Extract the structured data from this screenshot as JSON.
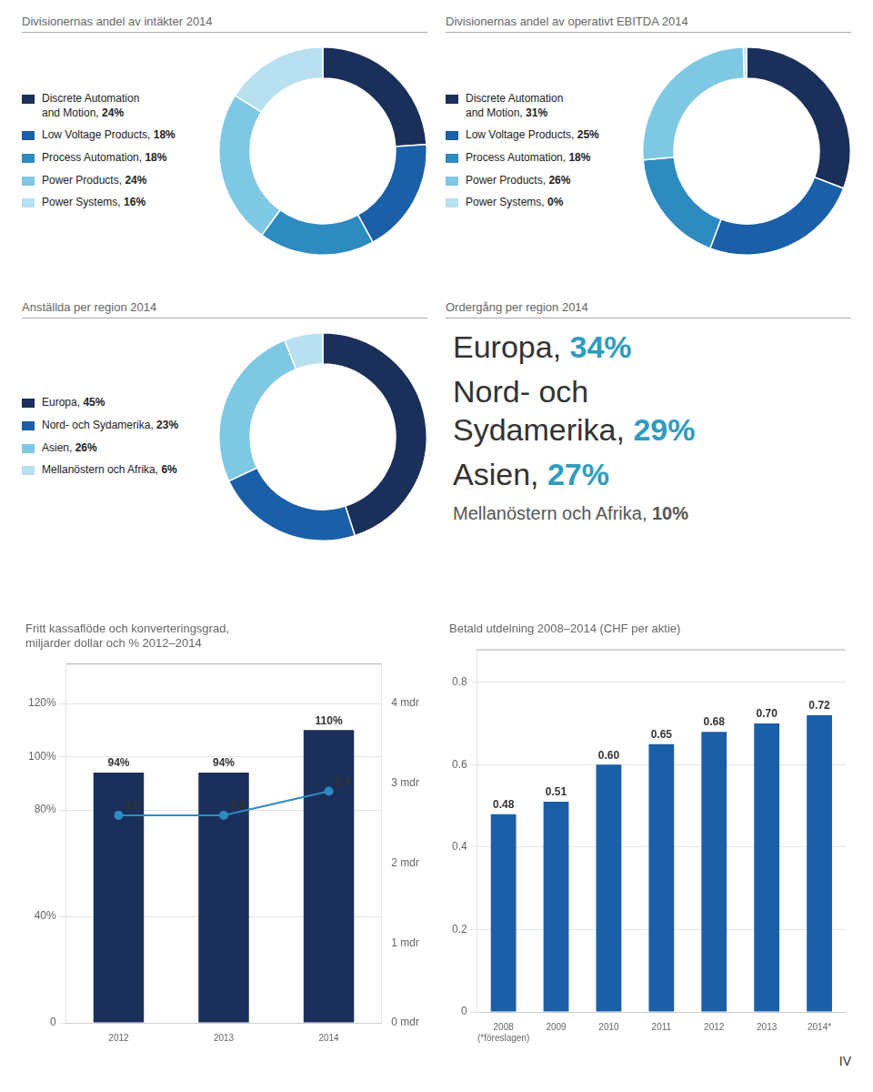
{
  "chart_data": [
    {
      "type": "doughnut",
      "title": "Divisionernas andel av intäkter 2014",
      "categories": [
        "Discrete Automation\nand Motion, ",
        "Low Voltage Products, ",
        "Process Automation, ",
        "Power Products, ",
        "Power Systems, "
      ],
      "values": [
        24,
        18,
        18,
        24,
        16
      ],
      "value_labels": [
        "24%",
        "18%",
        "18%",
        "24%",
        "16%"
      ],
      "colors": [
        "#1a2f5a",
        "#1a5fa8",
        "#2e8bc0",
        "#7ec8e3",
        "#b8e0f0"
      ]
    },
    {
      "type": "doughnut",
      "title": "Divisionernas andel av operativt EBITDA 2014",
      "categories": [
        "Discrete Automation\nand Motion, ",
        "Low Voltage Products, ",
        "Process Automation, ",
        "Power Products, ",
        "Power Systems, "
      ],
      "values": [
        31,
        25,
        18,
        26,
        0.5
      ],
      "value_labels": [
        "31%",
        "25%",
        "18%",
        "26%",
        "0%"
      ],
      "colors": [
        "#1a2f5a",
        "#1a5fa8",
        "#2e8bc0",
        "#7ec8e3",
        "#b8e0f0"
      ]
    },
    {
      "type": "doughnut",
      "title": "Anställda per region 2014",
      "categories": [
        "Europa, ",
        "Nord- och Sydamerika, ",
        "Asien, ",
        "Mellanöstern och Afrika, "
      ],
      "values": [
        45,
        23,
        26,
        6
      ],
      "value_labels": [
        "45%",
        "23%",
        "26%",
        "6%"
      ],
      "colors": [
        "#1a2f5a",
        "#1a5fa8",
        "#7ec8e3",
        "#b8e0f0"
      ]
    },
    {
      "type": "text",
      "title": "Ordergång per region 2014",
      "annotations": [
        "Europa, 34%",
        "Nord- och\nSydamerika, 29%",
        "Asien, 27%",
        "Mellanöstern och Afrika, 10%"
      ],
      "color": "#2e9cc0"
    },
    {
      "type": "bar",
      "title": "Fritt kassaflöde och konverteringsgrad,\nmiljarder dollar och % 2012–2014",
      "categories": [
        "2012",
        "2013",
        "2014"
      ],
      "series": [
        {
          "type": "bar",
          "color": "#1a2f5a",
          "values": [
            94,
            94,
            110
          ],
          "value_labels": [
            "94%",
            "94%",
            "110%"
          ]
        },
        {
          "type": "line",
          "axis": "y2",
          "color": "#2e8bc0",
          "marker": "circle",
          "values": [
            2.6,
            2.6,
            2.9
          ]
        }
      ],
      "ylim": [
        0,
        135
      ],
      "yticks": [
        0,
        {
          "value": 40,
          "label": "40%"
        },
        {
          "value": 80,
          "label": "80%"
        },
        {
          "value": 100,
          "label": "100%"
        },
        {
          "value": 120,
          "label": "120%"
        }
      ],
      "y2lim": [
        0,
        4.5
      ],
      "y2ticks": [
        {
          "value": 0,
          "label": "0 mdr"
        },
        {
          "value": 1,
          "label": "1 mdr"
        },
        {
          "value": 2,
          "label": "2 mdr"
        },
        {
          "value": 3,
          "label": "3 mdr"
        },
        {
          "value": 4,
          "label": "4 mdr"
        }
      ],
      "grid": true,
      "data_labels": true
    },
    {
      "type": "bar",
      "title": "Betald utdelning 2008–2014 (CHF per aktie)",
      "categories": [
        "2008\n(*föreslagen)",
        "2009",
        "2010",
        "2011",
        "2012",
        "2013",
        "2014*"
      ],
      "values": [
        0.48,
        0.51,
        0.6,
        0.65,
        0.68,
        0.7,
        0.72
      ],
      "value_labels": [
        "0.48",
        "0.51",
        "0.60",
        "0.65",
        "0.68",
        "0.70",
        "0.72"
      ],
      "color": "#1a5fa8",
      "ylim": [
        0,
        0.88
      ],
      "yticks": [
        0,
        0.2,
        0.4,
        0.6,
        0.8
      ],
      "grid": true,
      "data_labels": true,
      "annotations": [
        "IV"
      ]
    }
  ]
}
